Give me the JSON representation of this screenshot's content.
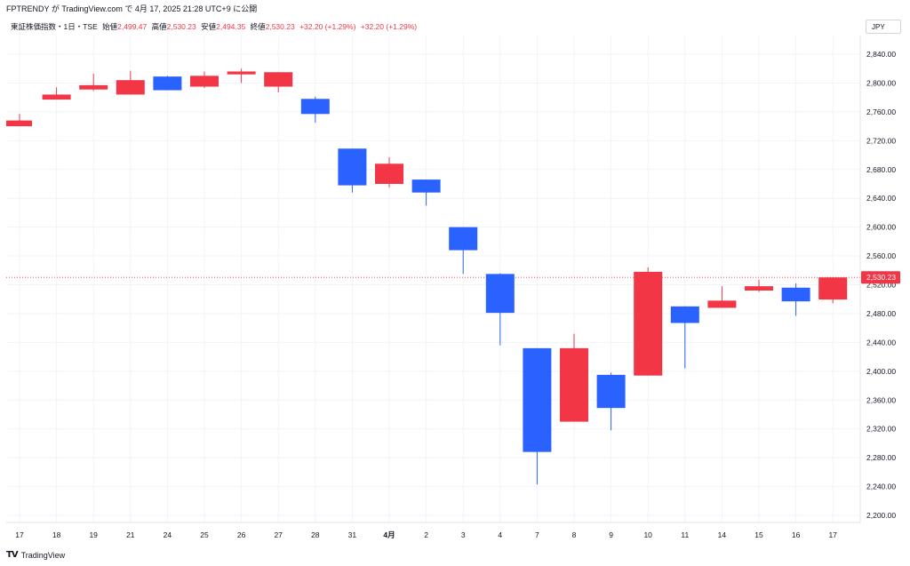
{
  "header": {
    "published_by": "FPTRENDY が TradingView.com で 4月 17, 2025 21:28 UTC+9 に公開",
    "symbol": "東証株価指数・1日・TSE",
    "open_label": "始値",
    "open_value": "2,499.47",
    "high_label": "高値",
    "high_value": "2,530.23",
    "low_label": "安値",
    "low_value": "2,494.35",
    "close_label": "終値",
    "close_value": "2,530.23",
    "change": "+32.20 (+1.29%)",
    "change2": "+32.20 (+1.29%)"
  },
  "currency": "JPY",
  "footer": {
    "brand": "TradingView",
    "brand_icon": "tradingview-logo-icon"
  },
  "colors": {
    "up": "#f23645",
    "down": "#2962ff",
    "grid": "#f0f3fa",
    "last_price_bg": "#f23645"
  },
  "chart_data": {
    "type": "candlestick",
    "title": "",
    "xlabel": "",
    "ylabel": "",
    "ylim": [
      2180,
      2860
    ],
    "yticks": [
      2200,
      2240,
      2280,
      2320,
      2360,
      2400,
      2440,
      2480,
      2520,
      2560,
      2600,
      2640,
      2680,
      2720,
      2760,
      2800,
      2840
    ],
    "ytick_labels": [
      "2,200.00",
      "2,240.00",
      "2,280.00",
      "2,320.00",
      "2,360.00",
      "2,400.00",
      "2,440.00",
      "2,480.00",
      "2,520.00",
      "2,560.00",
      "2,600.00",
      "2,640.00",
      "2,680.00",
      "2,720.00",
      "2,760.00",
      "2,800.00",
      "2,840.00"
    ],
    "last_price": 2530.23,
    "last_price_label": "2,530.23",
    "grid": true,
    "candles": [
      {
        "label": "17",
        "open": 2740,
        "high": 2757,
        "low": 2740,
        "close": 2748
      },
      {
        "label": "18",
        "open": 2777,
        "high": 2794,
        "low": 2777,
        "close": 2784
      },
      {
        "label": "19",
        "open": 2791,
        "high": 2813,
        "low": 2789,
        "close": 2797
      },
      {
        "label": "21",
        "open": 2784,
        "high": 2817,
        "low": 2784,
        "close": 2804
      },
      {
        "label": "24",
        "open": 2809,
        "high": 2810,
        "low": 2790,
        "close": 2790
      },
      {
        "label": "25",
        "open": 2795,
        "high": 2816,
        "low": 2793,
        "close": 2810
      },
      {
        "label": "26",
        "open": 2812,
        "high": 2820,
        "low": 2800,
        "close": 2816
      },
      {
        "label": "27",
        "open": 2795,
        "high": 2815,
        "low": 2787,
        "close": 2815
      },
      {
        "label": "28",
        "open": 2778,
        "high": 2781,
        "low": 2745,
        "close": 2757
      },
      {
        "label": "31",
        "open": 2709,
        "high": 2709,
        "low": 2648,
        "close": 2658
      },
      {
        "label": "4月",
        "open": 2660,
        "high": 2697,
        "low": 2655,
        "close": 2688
      },
      {
        "label": "2",
        "open": 2666,
        "high": 2666,
        "low": 2630,
        "close": 2648
      },
      {
        "label": "3",
        "open": 2600,
        "high": 2600,
        "low": 2535,
        "close": 2568
      },
      {
        "label": "4",
        "open": 2535,
        "high": 2536,
        "low": 2436,
        "close": 2481
      },
      {
        "label": "7",
        "open": 2432,
        "high": 2432,
        "low": 2243,
        "close": 2288
      },
      {
        "label": "8",
        "open": 2330,
        "high": 2452,
        "low": 2330,
        "close": 2432
      },
      {
        "label": "9",
        "open": 2395,
        "high": 2398,
        "low": 2318,
        "close": 2349
      },
      {
        "label": "10",
        "open": 2394,
        "high": 2544,
        "low": 2394,
        "close": 2538
      },
      {
        "label": "11",
        "open": 2490,
        "high": 2490,
        "low": 2404,
        "close": 2467
      },
      {
        "label": "14",
        "open": 2488,
        "high": 2518,
        "low": 2488,
        "close": 2498
      },
      {
        "label": "15",
        "open": 2512,
        "high": 2527,
        "low": 2510,
        "close": 2518
      },
      {
        "label": "16",
        "open": 2516,
        "high": 2522,
        "low": 2477,
        "close": 2497
      },
      {
        "label": "17",
        "open": 2499.47,
        "high": 2530.23,
        "low": 2494.35,
        "close": 2530.23
      }
    ]
  }
}
